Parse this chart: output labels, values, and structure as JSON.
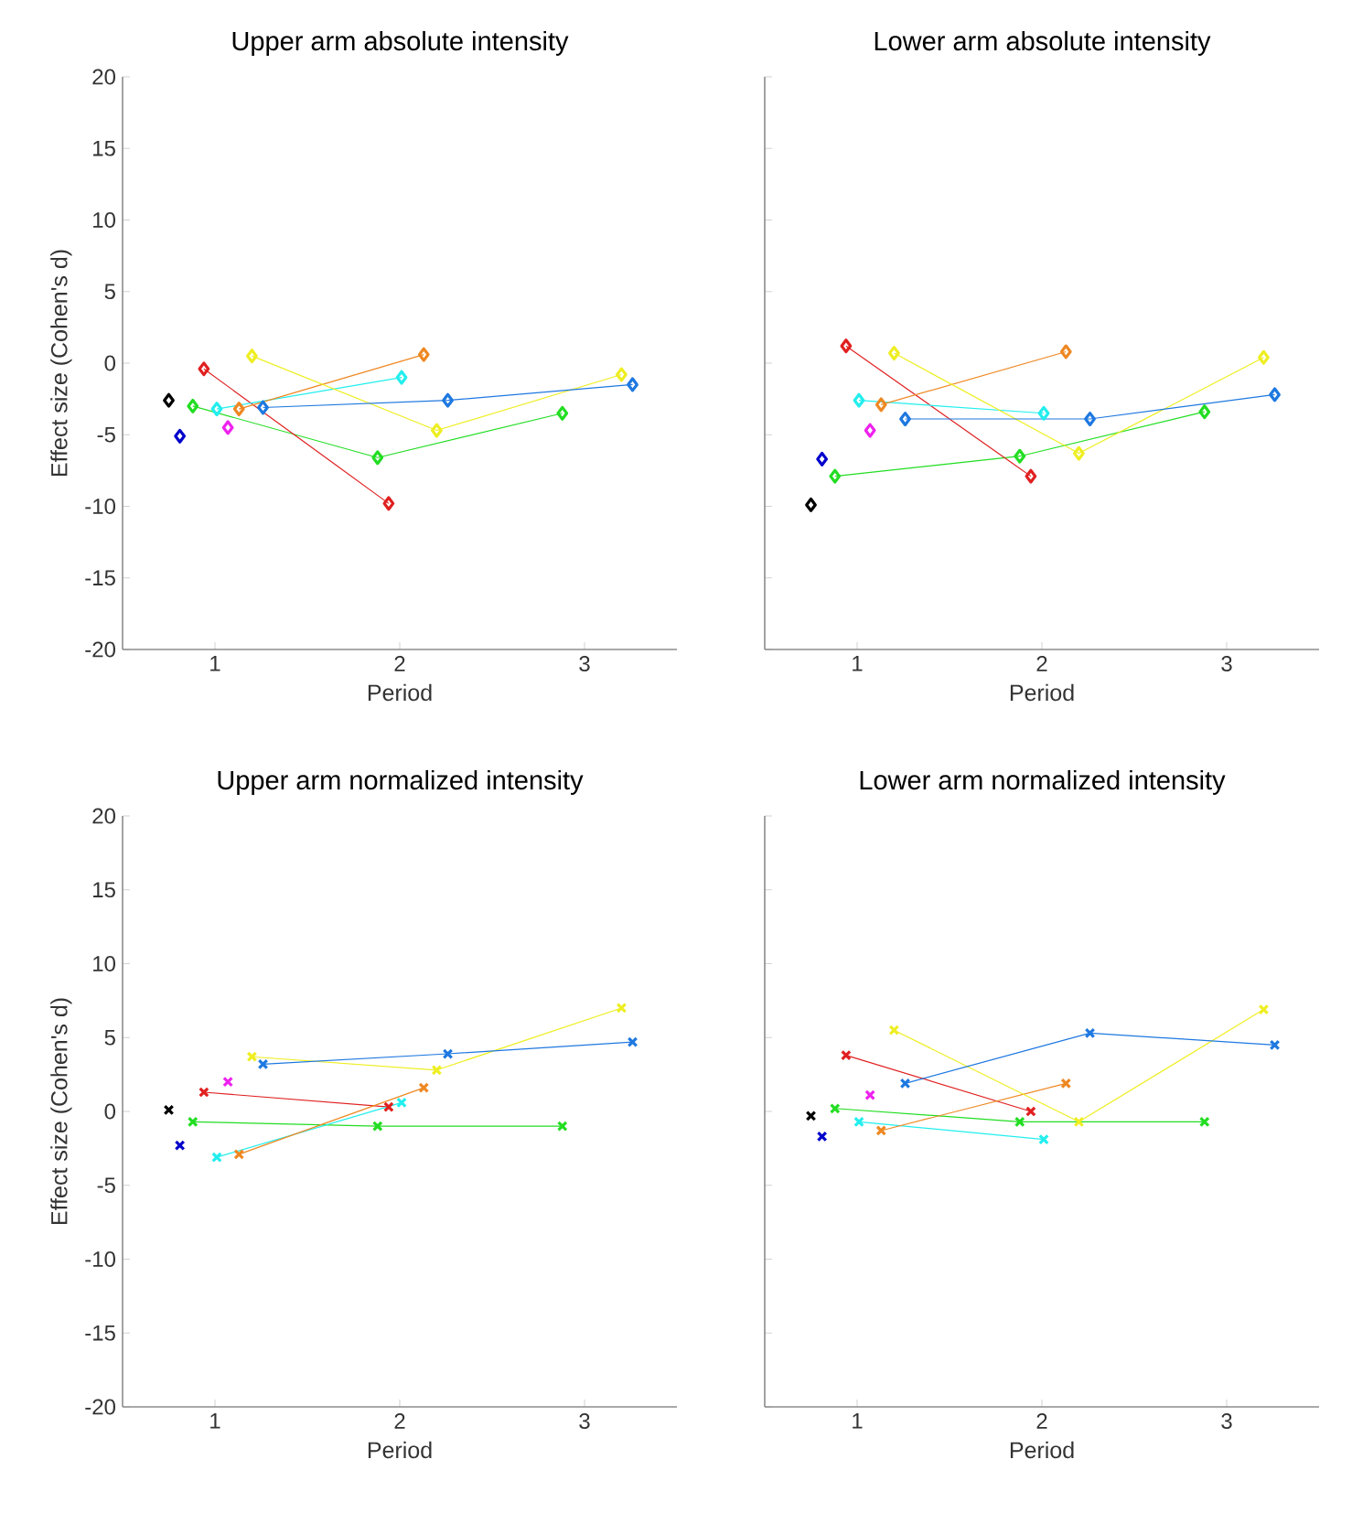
{
  "chart_data": [
    {
      "type": "line",
      "title": "Upper arm absolute intensity",
      "xlabel": "Period",
      "ylabel": "Effect size (Cohen's d)",
      "xlim": [
        0.5,
        3.5
      ],
      "ylim": [
        -20,
        20
      ],
      "xticks": [
        1,
        2,
        3
      ],
      "yticks": [
        -20,
        -15,
        -10,
        -5,
        0,
        5,
        10,
        15,
        20
      ],
      "marker": "diamond",
      "tick_labels": "xy",
      "series": [
        {
          "color": "#000000",
          "x": [
            0.75
          ],
          "values": [
            -2.6
          ]
        },
        {
          "color": "#0000cc",
          "x": [
            0.81
          ],
          "values": [
            -5.1
          ]
        },
        {
          "color": "#22dd22",
          "x": [
            0.88,
            1.88,
            2.88
          ],
          "values": [
            -3.0,
            -6.6,
            -3.5
          ]
        },
        {
          "color": "#e02020",
          "x": [
            0.94,
            1.94
          ],
          "values": [
            -0.4,
            -9.8
          ]
        },
        {
          "color": "#22eeee",
          "x": [
            1.01,
            2.01
          ],
          "values": [
            -3.2,
            -1.0
          ]
        },
        {
          "color": "#ee22ee",
          "x": [
            1.07
          ],
          "values": [
            -4.5
          ]
        },
        {
          "color": "#ee8822",
          "x": [
            1.13,
            2.13
          ],
          "values": [
            -3.2,
            0.6
          ]
        },
        {
          "color": "#eeee22",
          "x": [
            1.2,
            2.2,
            3.2
          ],
          "values": [
            0.5,
            -4.7,
            -0.8
          ]
        },
        {
          "color": "#1e78e0",
          "x": [
            1.26,
            2.26,
            3.26
          ],
          "values": [
            -3.1,
            -2.6,
            -1.5
          ]
        }
      ]
    },
    {
      "type": "line",
      "title": "Lower arm absolute intensity",
      "xlabel": "Period",
      "xlim": [
        0.5,
        3.5
      ],
      "ylim": [
        -20,
        20
      ],
      "xticks": [
        1,
        2,
        3
      ],
      "yticks": [
        -20,
        -15,
        -10,
        -5,
        0,
        5,
        10,
        15,
        20
      ],
      "marker": "diamond",
      "tick_labels": "x",
      "series": [
        {
          "color": "#000000",
          "x": [
            0.75
          ],
          "values": [
            -9.9
          ]
        },
        {
          "color": "#0000cc",
          "x": [
            0.81
          ],
          "values": [
            -6.7
          ]
        },
        {
          "color": "#22dd22",
          "x": [
            0.88,
            1.88,
            2.88
          ],
          "values": [
            -7.9,
            -6.5,
            -3.4
          ]
        },
        {
          "color": "#e02020",
          "x": [
            0.94,
            1.94
          ],
          "values": [
            1.2,
            -7.9
          ]
        },
        {
          "color": "#22eeee",
          "x": [
            1.01,
            2.01
          ],
          "values": [
            -2.6,
            -3.5
          ]
        },
        {
          "color": "#ee22ee",
          "x": [
            1.07
          ],
          "values": [
            -4.7
          ]
        },
        {
          "color": "#ee8822",
          "x": [
            1.13,
            2.13
          ],
          "values": [
            -2.9,
            0.8
          ]
        },
        {
          "color": "#eeee22",
          "x": [
            1.2,
            2.2,
            3.2
          ],
          "values": [
            0.7,
            -6.3,
            0.4
          ]
        },
        {
          "color": "#1e78e0",
          "x": [
            1.26,
            2.26,
            3.26
          ],
          "values": [
            -3.9,
            -3.9,
            -2.2
          ]
        }
      ]
    },
    {
      "type": "line",
      "title": "Upper arm normalized intensity",
      "xlabel": "Period",
      "ylabel": "Effect size (Cohen's d)",
      "xlim": [
        0.5,
        3.5
      ],
      "ylim": [
        -20,
        20
      ],
      "xticks": [
        1,
        2,
        3
      ],
      "yticks": [
        -20,
        -15,
        -10,
        -5,
        0,
        5,
        10,
        15,
        20
      ],
      "marker": "cross",
      "tick_labels": "xy",
      "series": [
        {
          "color": "#000000",
          "x": [
            0.75
          ],
          "values": [
            0.1
          ]
        },
        {
          "color": "#0000cc",
          "x": [
            0.81
          ],
          "values": [
            -2.3
          ]
        },
        {
          "color": "#22dd22",
          "x": [
            0.88,
            1.88,
            2.88
          ],
          "values": [
            -0.7,
            -1.0,
            -1.0
          ]
        },
        {
          "color": "#e02020",
          "x": [
            0.94,
            1.94
          ],
          "values": [
            1.3,
            0.3
          ]
        },
        {
          "color": "#22eeee",
          "x": [
            1.01,
            2.01
          ],
          "values": [
            -3.1,
            0.6
          ]
        },
        {
          "color": "#ee22ee",
          "x": [
            1.07
          ],
          "values": [
            2.0
          ]
        },
        {
          "color": "#ee8822",
          "x": [
            1.13,
            2.13
          ],
          "values": [
            -2.9,
            1.6
          ]
        },
        {
          "color": "#eeee22",
          "x": [
            1.2,
            2.2,
            3.2
          ],
          "values": [
            3.7,
            2.8,
            7.0
          ]
        },
        {
          "color": "#1e78e0",
          "x": [
            1.26,
            2.26,
            3.26
          ],
          "values": [
            3.2,
            3.9,
            4.7
          ]
        }
      ]
    },
    {
      "type": "line",
      "title": "Lower arm normalized intensity",
      "xlabel": "Period",
      "xlim": [
        0.5,
        3.5
      ],
      "ylim": [
        -20,
        20
      ],
      "xticks": [
        1,
        2,
        3
      ],
      "yticks": [
        -20,
        -15,
        -10,
        -5,
        0,
        5,
        10,
        15,
        20
      ],
      "marker": "cross",
      "tick_labels": "x",
      "series": [
        {
          "color": "#000000",
          "x": [
            0.75
          ],
          "values": [
            -0.3
          ]
        },
        {
          "color": "#0000cc",
          "x": [
            0.81
          ],
          "values": [
            -1.7
          ]
        },
        {
          "color": "#22dd22",
          "x": [
            0.88,
            1.88,
            2.88
          ],
          "values": [
            0.2,
            -0.7,
            -0.7
          ]
        },
        {
          "color": "#e02020",
          "x": [
            0.94,
            1.94
          ],
          "values": [
            3.8,
            0.0
          ]
        },
        {
          "color": "#22eeee",
          "x": [
            1.01,
            2.01
          ],
          "values": [
            -0.7,
            -1.9
          ]
        },
        {
          "color": "#ee22ee",
          "x": [
            1.07
          ],
          "values": [
            1.1
          ]
        },
        {
          "color": "#ee8822",
          "x": [
            1.13,
            2.13
          ],
          "values": [
            -1.3,
            1.9
          ]
        },
        {
          "color": "#eeee22",
          "x": [
            1.2,
            2.2,
            3.2
          ],
          "values": [
            5.5,
            -0.7,
            6.9
          ]
        },
        {
          "color": "#1e78e0",
          "x": [
            1.26,
            2.26,
            3.26
          ],
          "values": [
            1.9,
            5.3,
            4.5
          ]
        }
      ]
    }
  ]
}
